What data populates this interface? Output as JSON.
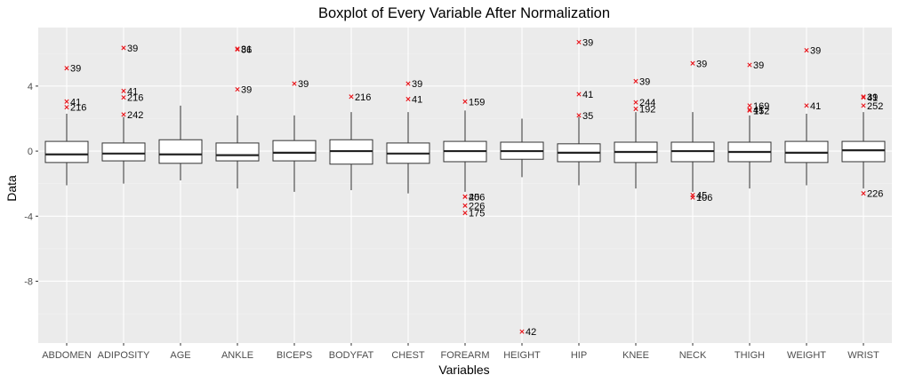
{
  "chart_data": {
    "type": "boxplot",
    "title": "Boxplot of Every Variable After Normalization",
    "xlabel": "Variables",
    "ylabel": "Data",
    "ylim": [
      -11.8,
      7.6
    ],
    "yticks": [
      4,
      0,
      -4,
      -8
    ],
    "grid": true,
    "outlier_color": "#e8141a",
    "panel_color": "#ebebeb",
    "categories": [
      "ABDOMEN",
      "ADIPOSITY",
      "AGE",
      "ANKLE",
      "BICEPS",
      "BODYFAT",
      "CHEST",
      "FOREARM",
      "HEIGHT",
      "HIP",
      "KNEE",
      "NECK",
      "THIGH",
      "WEIGHT",
      "WRIST"
    ],
    "boxes": [
      {
        "name": "ABDOMEN",
        "whisker_low": -2.1,
        "q1": -0.7,
        "median": -0.2,
        "q3": 0.6,
        "whisker_high": 2.3
      },
      {
        "name": "ADIPOSITY",
        "whisker_low": -2.0,
        "q1": -0.6,
        "median": -0.15,
        "q3": 0.5,
        "whisker_high": 2.1
      },
      {
        "name": "AGE",
        "whisker_low": -1.8,
        "q1": -0.75,
        "median": -0.2,
        "q3": 0.7,
        "whisker_high": 2.8
      },
      {
        "name": "ANKLE",
        "whisker_low": -2.3,
        "q1": -0.6,
        "median": -0.25,
        "q3": 0.5,
        "whisker_high": 2.2
      },
      {
        "name": "BICEPS",
        "whisker_low": -2.5,
        "q1": -0.6,
        "median": -0.1,
        "q3": 0.65,
        "whisker_high": 2.2
      },
      {
        "name": "BODYFAT",
        "whisker_low": -2.4,
        "q1": -0.8,
        "median": 0.0,
        "q3": 0.7,
        "whisker_high": 2.4
      },
      {
        "name": "CHEST",
        "whisker_low": -2.6,
        "q1": -0.75,
        "median": -0.15,
        "q3": 0.5,
        "whisker_high": 2.4
      },
      {
        "name": "FOREARM",
        "whisker_low": -2.5,
        "q1": -0.65,
        "median": 0.0,
        "q3": 0.6,
        "whisker_high": 2.5
      },
      {
        "name": "HEIGHT",
        "whisker_low": -1.6,
        "q1": -0.5,
        "median": 0.0,
        "q3": 0.55,
        "whisker_high": 2.0
      },
      {
        "name": "HIP",
        "whisker_low": -2.1,
        "q1": -0.65,
        "median": -0.1,
        "q3": 0.45,
        "whisker_high": 2.1
      },
      {
        "name": "KNEE",
        "whisker_low": -2.3,
        "q1": -0.7,
        "median": -0.05,
        "q3": 0.55,
        "whisker_high": 2.4
      },
      {
        "name": "NECK",
        "whisker_low": -2.5,
        "q1": -0.65,
        "median": 0.0,
        "q3": 0.55,
        "whisker_high": 2.4
      },
      {
        "name": "THIGH",
        "whisker_low": -2.3,
        "q1": -0.65,
        "median": -0.05,
        "q3": 0.55,
        "whisker_high": 2.2
      },
      {
        "name": "WEIGHT",
        "whisker_low": -2.1,
        "q1": -0.7,
        "median": -0.1,
        "q3": 0.6,
        "whisker_high": 2.3
      },
      {
        "name": "WRIST",
        "whisker_low": -2.3,
        "q1": -0.65,
        "median": 0.05,
        "q3": 0.6,
        "whisker_high": 2.4
      }
    ],
    "outliers": [
      {
        "category": "ABDOMEN",
        "value": 5.1,
        "label": "39"
      },
      {
        "category": "ABDOMEN",
        "value": 3.05,
        "label": "41"
      },
      {
        "category": "ABDOMEN",
        "value": 2.7,
        "label": "216"
      },
      {
        "category": "ADIPOSITY",
        "value": 6.35,
        "label": "39"
      },
      {
        "category": "ADIPOSITY",
        "value": 3.7,
        "label": "41"
      },
      {
        "category": "ADIPOSITY",
        "value": 3.3,
        "label": "216"
      },
      {
        "category": "ADIPOSITY",
        "value": 2.25,
        "label": "242"
      },
      {
        "category": "ANKLE",
        "value": 6.3,
        "label": "31"
      },
      {
        "category": "ANKLE",
        "value": 6.25,
        "label": "86"
      },
      {
        "category": "ANKLE",
        "value": 3.8,
        "label": "39"
      },
      {
        "category": "BICEPS",
        "value": 4.15,
        "label": "39"
      },
      {
        "category": "BODYFAT",
        "value": 3.35,
        "label": "216"
      },
      {
        "category": "CHEST",
        "value": 4.15,
        "label": "39"
      },
      {
        "category": "CHEST",
        "value": 3.2,
        "label": "41"
      },
      {
        "category": "FOREARM",
        "value": 3.05,
        "label": "159"
      },
      {
        "category": "FOREARM",
        "value": -2.8,
        "label": "45"
      },
      {
        "category": "FOREARM",
        "value": -2.8,
        "label": "206"
      },
      {
        "category": "FOREARM",
        "value": -3.35,
        "label": "226"
      },
      {
        "category": "FOREARM",
        "value": -3.8,
        "label": "175"
      },
      {
        "category": "HEIGHT",
        "value": -11.1,
        "label": "42"
      },
      {
        "category": "HIP",
        "value": 6.7,
        "label": "39"
      },
      {
        "category": "HIP",
        "value": 3.5,
        "label": "41"
      },
      {
        "category": "HIP",
        "value": 2.2,
        "label": "35"
      },
      {
        "category": "KNEE",
        "value": 4.3,
        "label": "39"
      },
      {
        "category": "KNEE",
        "value": 3.0,
        "label": "244"
      },
      {
        "category": "KNEE",
        "value": 2.6,
        "label": "192"
      },
      {
        "category": "NECK",
        "value": 5.4,
        "label": "39"
      },
      {
        "category": "NECK",
        "value": -2.7,
        "label": "45"
      },
      {
        "category": "NECK",
        "value": -2.85,
        "label": "106"
      },
      {
        "category": "THIGH",
        "value": 5.3,
        "label": "39"
      },
      {
        "category": "THIGH",
        "value": 2.8,
        "label": "169"
      },
      {
        "category": "THIGH",
        "value": 2.55,
        "label": "41"
      },
      {
        "category": "THIGH",
        "value": 2.5,
        "label": "152"
      },
      {
        "category": "WEIGHT",
        "value": 6.2,
        "label": "39"
      },
      {
        "category": "WEIGHT",
        "value": 2.8,
        "label": "41"
      },
      {
        "category": "WRIST",
        "value": 3.35,
        "label": "39"
      },
      {
        "category": "WRIST",
        "value": 3.3,
        "label": "41"
      },
      {
        "category": "WRIST",
        "value": 2.8,
        "label": "252"
      },
      {
        "category": "WRIST",
        "value": -2.6,
        "label": "226"
      }
    ]
  }
}
